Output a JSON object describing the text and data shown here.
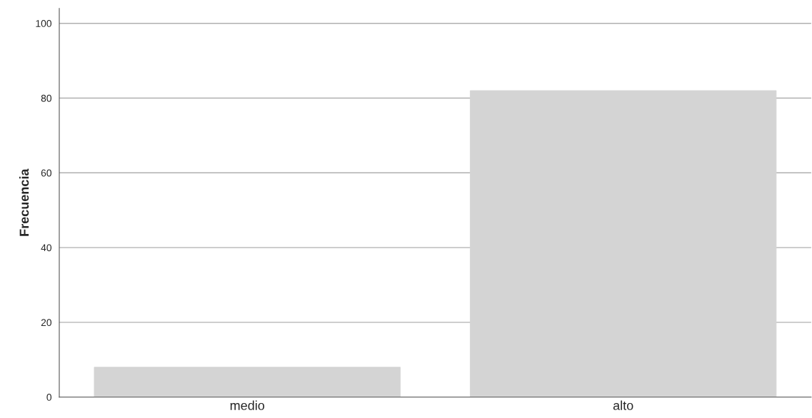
{
  "chart_data": {
    "type": "bar",
    "ylabel": "Frecuencia",
    "categories": [
      "medio",
      "alto"
    ],
    "values": [
      8,
      82
    ],
    "color": "#d4d4d4",
    "ylim": [
      0,
      104
    ],
    "yticks": [
      0,
      20,
      40,
      60,
      80,
      100
    ],
    "grid": "y",
    "legend": false
  }
}
